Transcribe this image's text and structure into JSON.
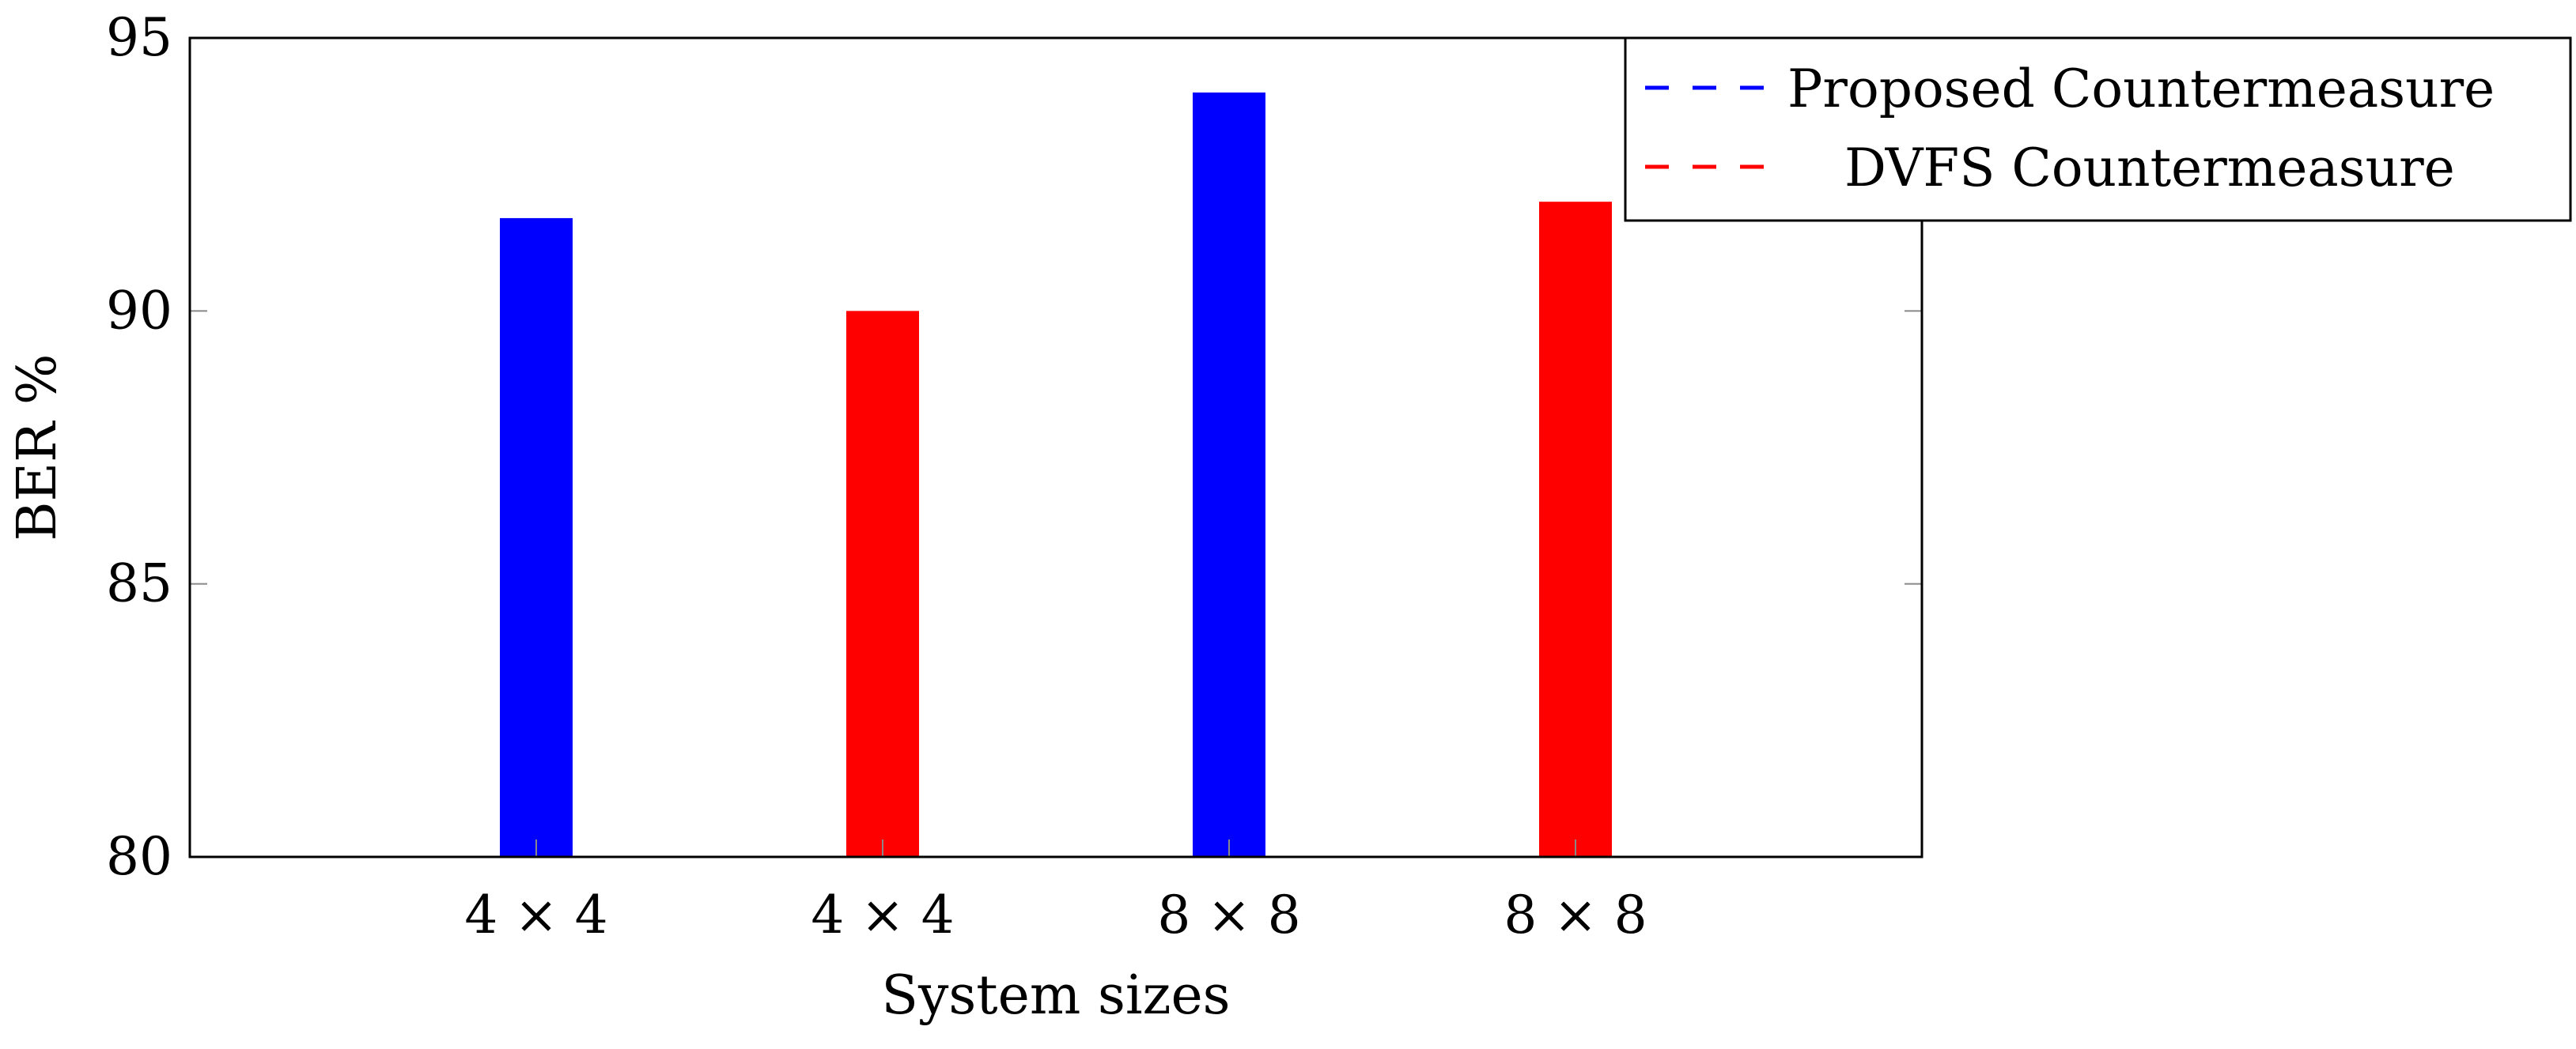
{
  "chart_data": {
    "type": "bar",
    "title": "",
    "xlabel": "System sizes",
    "ylabel": "BER %",
    "ylim": [
      80,
      95
    ],
    "yticks": [
      80,
      85,
      90,
      95
    ],
    "grid": false,
    "legend_position": "top-right",
    "categories": [
      "4 × 4",
      "4 × 4",
      "8 × 8",
      "8 × 8"
    ],
    "series": [
      {
        "name": "Proposed Countermeasure",
        "color": "#0000ff",
        "values": [
          91.7,
          null,
          94.0,
          null
        ]
      },
      {
        "name": "DVFS Countermeasure",
        "color": "#ff0000",
        "values": [
          null,
          90.0,
          null,
          92.0
        ]
      }
    ]
  }
}
